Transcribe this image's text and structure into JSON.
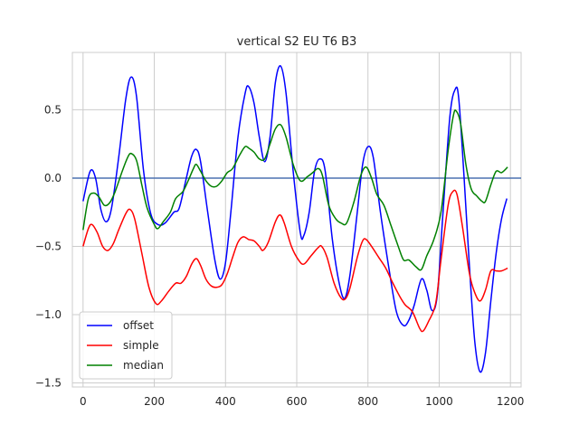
{
  "chart_data": {
    "type": "line",
    "title": "vertical S2 EU T6 B3",
    "xlabel": "",
    "ylabel": "",
    "xlim": [
      -30,
      1230
    ],
    "ylim": [
      -1.53,
      0.92
    ],
    "xticks": [
      0,
      200,
      400,
      600,
      800,
      1000,
      1200
    ],
    "xtick_labels": [
      "0",
      "200",
      "400",
      "600",
      "800",
      "1000",
      "1200"
    ],
    "yticks": [
      -1.5,
      -1.0,
      -0.5,
      0.0,
      0.5
    ],
    "ytick_labels": [
      "−1.5",
      "−1.0",
      "−0.5",
      "0.0",
      "0.5"
    ],
    "grid": true,
    "legend_position": "lower-left",
    "hline": {
      "y": 0.0,
      "color": "#4c72b0"
    },
    "series": [
      {
        "name": "offset",
        "color": "#0000ff",
        "points": [
          [
            0,
            -0.17
          ],
          [
            20,
            0.05
          ],
          [
            35,
            0.0
          ],
          [
            50,
            -0.23
          ],
          [
            65,
            -0.32
          ],
          [
            80,
            -0.22
          ],
          [
            100,
            0.15
          ],
          [
            120,
            0.58
          ],
          [
            135,
            0.74
          ],
          [
            150,
            0.6
          ],
          [
            170,
            0.05
          ],
          [
            190,
            -0.26
          ],
          [
            210,
            -0.34
          ],
          [
            230,
            -0.33
          ],
          [
            255,
            -0.25
          ],
          [
            270,
            -0.22
          ],
          [
            290,
            0.0
          ],
          [
            305,
            0.16
          ],
          [
            318,
            0.21
          ],
          [
            330,
            0.12
          ],
          [
            350,
            -0.25
          ],
          [
            370,
            -0.6
          ],
          [
            385,
            -0.74
          ],
          [
            400,
            -0.62
          ],
          [
            415,
            -0.25
          ],
          [
            435,
            0.3
          ],
          [
            455,
            0.62
          ],
          [
            465,
            0.67
          ],
          [
            480,
            0.55
          ],
          [
            495,
            0.3
          ],
          [
            510,
            0.12
          ],
          [
            525,
            0.3
          ],
          [
            540,
            0.7
          ],
          [
            555,
            0.82
          ],
          [
            570,
            0.62
          ],
          [
            590,
            0.05
          ],
          [
            610,
            -0.4
          ],
          [
            620,
            -0.42
          ],
          [
            635,
            -0.25
          ],
          [
            650,
            0.05
          ],
          [
            665,
            0.14
          ],
          [
            680,
            0.05
          ],
          [
            700,
            -0.45
          ],
          [
            720,
            -0.78
          ],
          [
            735,
            -0.88
          ],
          [
            750,
            -0.7
          ],
          [
            770,
            -0.25
          ],
          [
            785,
            0.1
          ],
          [
            800,
            0.23
          ],
          [
            815,
            0.15
          ],
          [
            835,
            -0.25
          ],
          [
            860,
            -0.68
          ],
          [
            880,
            -0.98
          ],
          [
            900,
            -1.08
          ],
          [
            915,
            -1.04
          ],
          [
            930,
            -0.93
          ],
          [
            950,
            -0.74
          ],
          [
            965,
            -0.82
          ],
          [
            980,
            -0.97
          ],
          [
            995,
            -0.85
          ],
          [
            1010,
            -0.28
          ],
          [
            1030,
            0.45
          ],
          [
            1045,
            0.65
          ],
          [
            1055,
            0.58
          ],
          [
            1070,
            0.0
          ],
          [
            1085,
            -0.65
          ],
          [
            1100,
            -1.2
          ],
          [
            1115,
            -1.42
          ],
          [
            1130,
            -1.28
          ],
          [
            1145,
            -0.9
          ],
          [
            1160,
            -0.55
          ],
          [
            1175,
            -0.3
          ],
          [
            1190,
            -0.15
          ]
        ]
      },
      {
        "name": "simple",
        "color": "#ff0000",
        "points": [
          [
            0,
            -0.5
          ],
          [
            15,
            -0.37
          ],
          [
            25,
            -0.34
          ],
          [
            40,
            -0.4
          ],
          [
            55,
            -0.5
          ],
          [
            70,
            -0.53
          ],
          [
            85,
            -0.48
          ],
          [
            100,
            -0.38
          ],
          [
            120,
            -0.26
          ],
          [
            132,
            -0.23
          ],
          [
            145,
            -0.3
          ],
          [
            165,
            -0.55
          ],
          [
            185,
            -0.8
          ],
          [
            205,
            -0.92
          ],
          [
            220,
            -0.9
          ],
          [
            240,
            -0.83
          ],
          [
            260,
            -0.77
          ],
          [
            275,
            -0.77
          ],
          [
            290,
            -0.72
          ],
          [
            305,
            -0.63
          ],
          [
            318,
            -0.59
          ],
          [
            330,
            -0.64
          ],
          [
            345,
            -0.74
          ],
          [
            360,
            -0.79
          ],
          [
            375,
            -0.8
          ],
          [
            390,
            -0.78
          ],
          [
            405,
            -0.7
          ],
          [
            420,
            -0.58
          ],
          [
            435,
            -0.47
          ],
          [
            450,
            -0.43
          ],
          [
            465,
            -0.45
          ],
          [
            480,
            -0.46
          ],
          [
            495,
            -0.5
          ],
          [
            505,
            -0.53
          ],
          [
            520,
            -0.47
          ],
          [
            540,
            -0.32
          ],
          [
            553,
            -0.27
          ],
          [
            565,
            -0.33
          ],
          [
            585,
            -0.5
          ],
          [
            605,
            -0.6
          ],
          [
            620,
            -0.63
          ],
          [
            640,
            -0.57
          ],
          [
            660,
            -0.51
          ],
          [
            670,
            -0.5
          ],
          [
            685,
            -0.58
          ],
          [
            705,
            -0.77
          ],
          [
            725,
            -0.88
          ],
          [
            738,
            -0.88
          ],
          [
            750,
            -0.8
          ],
          [
            770,
            -0.58
          ],
          [
            785,
            -0.46
          ],
          [
            795,
            -0.45
          ],
          [
            810,
            -0.5
          ],
          [
            830,
            -0.58
          ],
          [
            850,
            -0.66
          ],
          [
            870,
            -0.77
          ],
          [
            890,
            -0.87
          ],
          [
            905,
            -0.93
          ],
          [
            925,
            -0.98
          ],
          [
            945,
            -1.1
          ],
          [
            955,
            -1.12
          ],
          [
            970,
            -1.05
          ],
          [
            990,
            -0.92
          ],
          [
            1005,
            -0.6
          ],
          [
            1025,
            -0.2
          ],
          [
            1038,
            -0.1
          ],
          [
            1050,
            -0.12
          ],
          [
            1065,
            -0.35
          ],
          [
            1085,
            -0.7
          ],
          [
            1100,
            -0.84
          ],
          [
            1115,
            -0.9
          ],
          [
            1130,
            -0.82
          ],
          [
            1145,
            -0.68
          ],
          [
            1160,
            -0.68
          ],
          [
            1175,
            -0.68
          ],
          [
            1192,
            -0.66
          ]
        ]
      },
      {
        "name": "median",
        "color": "#008000",
        "points": [
          [
            0,
            -0.38
          ],
          [
            15,
            -0.15
          ],
          [
            30,
            -0.11
          ],
          [
            45,
            -0.14
          ],
          [
            60,
            -0.2
          ],
          [
            75,
            -0.18
          ],
          [
            90,
            -0.1
          ],
          [
            110,
            0.05
          ],
          [
            125,
            0.15
          ],
          [
            135,
            0.18
          ],
          [
            150,
            0.13
          ],
          [
            165,
            -0.05
          ],
          [
            180,
            -0.22
          ],
          [
            200,
            -0.34
          ],
          [
            210,
            -0.37
          ],
          [
            225,
            -0.32
          ],
          [
            245,
            -0.25
          ],
          [
            260,
            -0.15
          ],
          [
            280,
            -0.1
          ],
          [
            295,
            -0.02
          ],
          [
            310,
            0.07
          ],
          [
            318,
            0.1
          ],
          [
            330,
            0.05
          ],
          [
            345,
            -0.02
          ],
          [
            360,
            -0.06
          ],
          [
            375,
            -0.06
          ],
          [
            390,
            -0.02
          ],
          [
            405,
            0.04
          ],
          [
            420,
            0.07
          ],
          [
            440,
            0.17
          ],
          [
            455,
            0.23
          ],
          [
            465,
            0.22
          ],
          [
            480,
            0.19
          ],
          [
            495,
            0.14
          ],
          [
            510,
            0.14
          ],
          [
            525,
            0.25
          ],
          [
            540,
            0.36
          ],
          [
            555,
            0.39
          ],
          [
            570,
            0.3
          ],
          [
            590,
            0.1
          ],
          [
            610,
            -0.02
          ],
          [
            630,
            0.01
          ],
          [
            645,
            0.04
          ],
          [
            660,
            0.07
          ],
          [
            672,
            0.02
          ],
          [
            690,
            -0.2
          ],
          [
            710,
            -0.3
          ],
          [
            725,
            -0.33
          ],
          [
            740,
            -0.33
          ],
          [
            760,
            -0.18
          ],
          [
            780,
            0.02
          ],
          [
            795,
            0.08
          ],
          [
            810,
            0.0
          ],
          [
            825,
            -0.12
          ],
          [
            845,
            -0.2
          ],
          [
            865,
            -0.35
          ],
          [
            885,
            -0.5
          ],
          [
            900,
            -0.6
          ],
          [
            915,
            -0.6
          ],
          [
            935,
            -0.65
          ],
          [
            950,
            -0.67
          ],
          [
            965,
            -0.57
          ],
          [
            985,
            -0.45
          ],
          [
            1005,
            -0.25
          ],
          [
            1025,
            0.2
          ],
          [
            1040,
            0.46
          ],
          [
            1048,
            0.49
          ],
          [
            1060,
            0.4
          ],
          [
            1075,
            0.1
          ],
          [
            1090,
            -0.08
          ],
          [
            1105,
            -0.13
          ],
          [
            1120,
            -0.17
          ],
          [
            1130,
            -0.17
          ],
          [
            1145,
            -0.05
          ],
          [
            1160,
            0.05
          ],
          [
            1175,
            0.04
          ],
          [
            1192,
            0.08
          ]
        ]
      }
    ]
  }
}
